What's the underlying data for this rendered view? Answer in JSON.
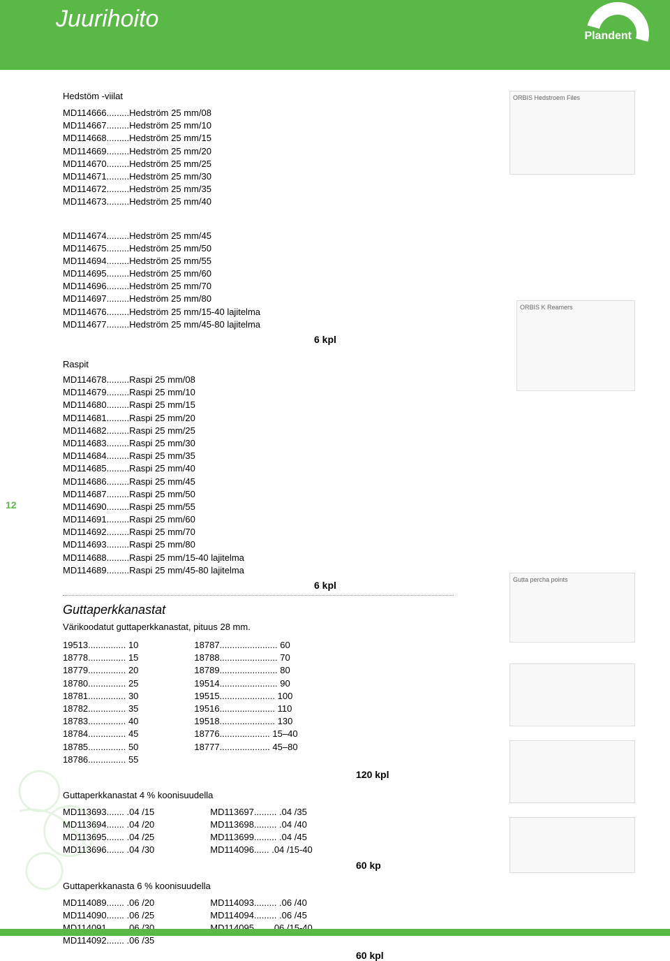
{
  "header": {
    "title": "Juurihoito",
    "brand": "Plandent"
  },
  "pageNumber": "12",
  "colors": {
    "accent": "#5ab847",
    "text": "#000000"
  },
  "hedstom": {
    "title": "Hedstöm -viilat",
    "list1": [
      {
        "code": "MD114666",
        "desc": "Hedström 25 mm/08"
      },
      {
        "code": "MD114667",
        "desc": "Hedström 25 mm/10"
      },
      {
        "code": "MD114668",
        "desc": "Hedström 25 mm/15"
      },
      {
        "code": "MD114669",
        "desc": "Hedström 25 mm/20"
      },
      {
        "code": "MD114670",
        "desc": "Hedström 25 mm/25"
      },
      {
        "code": "MD114671",
        "desc": "Hedström 25 mm/30"
      },
      {
        "code": "MD114672",
        "desc": "Hedström 25 mm/35"
      },
      {
        "code": "MD114673",
        "desc": "Hedström 25 mm/40"
      }
    ],
    "list2": [
      {
        "code": "MD114674",
        "desc": "Hedström 25 mm/45"
      },
      {
        "code": "MD114675",
        "desc": "Hedström 25 mm/50"
      },
      {
        "code": "MD114694",
        "desc": "Hedström 25 mm/55"
      },
      {
        "code": "MD114695",
        "desc": "Hedström 25 mm/60"
      },
      {
        "code": "MD114696",
        "desc": "Hedström 25 mm/70"
      },
      {
        "code": "MD114697",
        "desc": "Hedström 25 mm/80"
      },
      {
        "code": "MD114676",
        "desc": "Hedström 25 mm/15-40 lajitelma"
      },
      {
        "code": "MD114677",
        "desc": "Hedström 25 mm/45-80 lajitelma"
      }
    ],
    "qty1": "6 kpl"
  },
  "raspit": {
    "label": "Raspit",
    "list": [
      {
        "code": "MD114678",
        "desc": "Raspi 25 mm/08"
      },
      {
        "code": "MD114679",
        "desc": "Raspi 25 mm/10"
      },
      {
        "code": "MD114680",
        "desc": "Raspi 25 mm/15"
      },
      {
        "code": "MD114681",
        "desc": "Raspi 25 mm/20"
      },
      {
        "code": "MD114682",
        "desc": "Raspi 25 mm/25"
      },
      {
        "code": "MD114683",
        "desc": "Raspi 25 mm/30"
      },
      {
        "code": "MD114684",
        "desc": "Raspi 25 mm/35"
      },
      {
        "code": "MD114685",
        "desc": "Raspi 25 mm/40"
      },
      {
        "code": "MD114686",
        "desc": "Raspi 25 mm/45"
      },
      {
        "code": "MD114687",
        "desc": "Raspi 25 mm/50"
      },
      {
        "code": "MD114690",
        "desc": "Raspi 25 mm/55"
      },
      {
        "code": "MD114691",
        "desc": "Raspi 25 mm/60"
      },
      {
        "code": "MD114692",
        "desc": "Raspi 25 mm/70"
      },
      {
        "code": "MD114693",
        "desc": "Raspi 25 mm/80"
      },
      {
        "code": "MD114688",
        "desc": "Raspi 25 mm/15-40 lajitelma"
      },
      {
        "code": "MD114689",
        "desc": "Raspi 25 mm/45-80 lajitelma"
      }
    ],
    "qty": "6 kpl"
  },
  "gutta": {
    "title": "Guttaperkkanastat",
    "desc": "Värikoodatut guttaperkkanastat, pituus 28 mm.",
    "col1": [
      {
        "code": "19513",
        "desc": "10"
      },
      {
        "code": "18778",
        "desc": "15"
      },
      {
        "code": "18779",
        "desc": "20"
      },
      {
        "code": "18780",
        "desc": "25"
      },
      {
        "code": "18781",
        "desc": "30"
      },
      {
        "code": "18782",
        "desc": "35"
      },
      {
        "code": "18783",
        "desc": "40"
      },
      {
        "code": "18784",
        "desc": "45"
      },
      {
        "code": "18785",
        "desc": "50"
      },
      {
        "code": "18786",
        "desc": "55"
      }
    ],
    "col2": [
      {
        "code": "18787",
        "desc": "60"
      },
      {
        "code": "18788",
        "desc": "70"
      },
      {
        "code": "18789",
        "desc": "80"
      },
      {
        "code": "19514",
        "desc": "90"
      },
      {
        "code": "19515",
        "desc": "100"
      },
      {
        "code": "19516",
        "desc": "110"
      },
      {
        "code": "19518",
        "desc": "130"
      },
      {
        "code": "18776",
        "desc": "15–40"
      },
      {
        "code": "18777",
        "desc": "45–80"
      }
    ],
    "qty": "120 kpl"
  },
  "gutta4": {
    "title": "Guttaperkkanastat 4 % koonisuudella",
    "col1": [
      {
        "code": "MD113693",
        "desc": ".04 /15"
      },
      {
        "code": "MD113694",
        "desc": ".04 /20"
      },
      {
        "code": "MD113695",
        "desc": ".04 /25"
      },
      {
        "code": "MD113696",
        "desc": ".04 /30"
      }
    ],
    "col2": [
      {
        "code": "MD113697",
        "desc": ".04 /35"
      },
      {
        "code": "MD113698",
        "desc": ".04 /40"
      },
      {
        "code": "MD113699",
        "desc": ".04 /45"
      },
      {
        "code": "MD114096",
        "desc": ".04 /15-40"
      }
    ],
    "qty": "60 kp"
  },
  "gutta6": {
    "title": "Guttaperkkanasta 6 % koonisuudella",
    "col1": [
      {
        "code": "MD114089",
        "desc": ".06 /20"
      },
      {
        "code": "MD114090",
        "desc": ".06 /25"
      },
      {
        "code": "MD114091",
        "desc": ".06 /30"
      },
      {
        "code": "MD114092",
        "desc": ".06 /35"
      }
    ],
    "col2": [
      {
        "code": "MD114093",
        "desc": ".06 /40"
      },
      {
        "code": "MD114094",
        "desc": ".06 /45"
      },
      {
        "code": "MD114095",
        "desc": ".06 /15-40"
      }
    ],
    "qty": "60 kpl"
  },
  "imgLabels": {
    "img1": "ORBIS Hedstroem Files",
    "img2": "ORBIS K Reamers",
    "img3": "Gutta percha points",
    "img4": "",
    "img5": "",
    "img6": ""
  }
}
